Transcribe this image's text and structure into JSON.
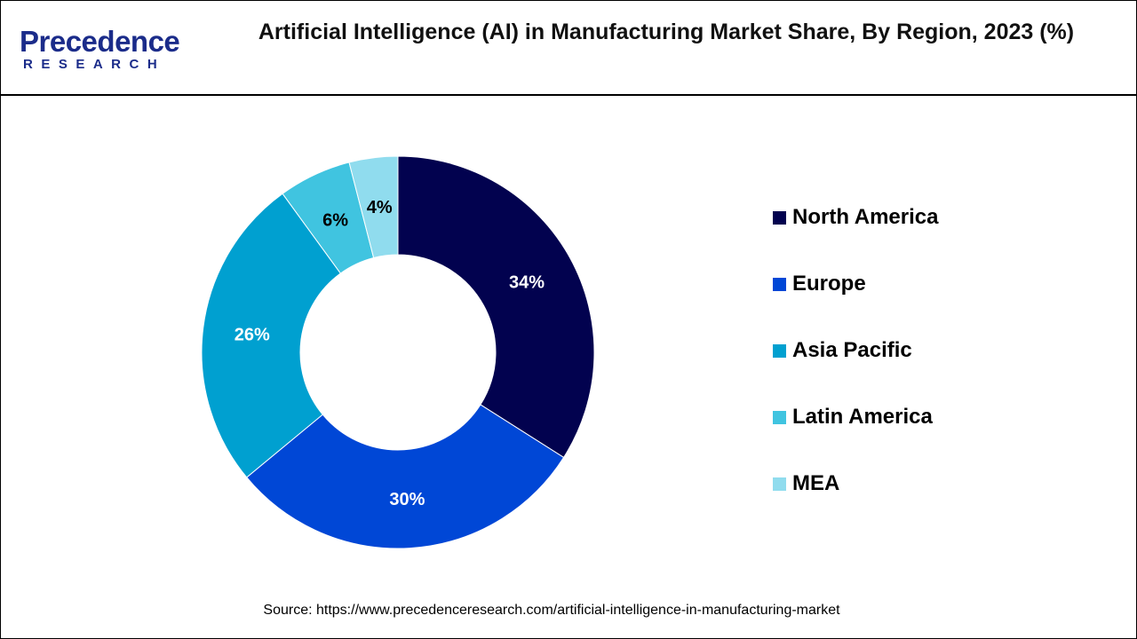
{
  "header": {
    "logo_text": "Precedence",
    "logo_subtext": "RESEARCH",
    "title": "Artificial Intelligence (AI) in Manufacturing Market Share, By Region, 2023 (%)"
  },
  "chart_data": {
    "type": "pie",
    "variant": "donut",
    "title": "Artificial Intelligence (AI) in Manufacturing Market Share, By Region, 2023 (%)",
    "categories": [
      "North America",
      "Europe",
      "Asia Pacific",
      "Latin America",
      "MEA"
    ],
    "values": [
      34,
      30,
      26,
      6,
      4
    ],
    "labels": [
      "34%",
      "30%",
      "26%",
      "6%",
      "4%"
    ],
    "colors": [
      "#02024f",
      "#0047d6",
      "#00a0d0",
      "#40c4e0",
      "#90dcee"
    ],
    "label_colors": [
      "#ffffff",
      "#ffffff",
      "#ffffff",
      "#000000",
      "#000000"
    ],
    "legend_position": "right",
    "start": "top",
    "direction": "clockwise"
  },
  "footer": {
    "source": "Source: https://www.precedenceresearch.com/artificial-intelligence-in-manufacturing-market"
  }
}
